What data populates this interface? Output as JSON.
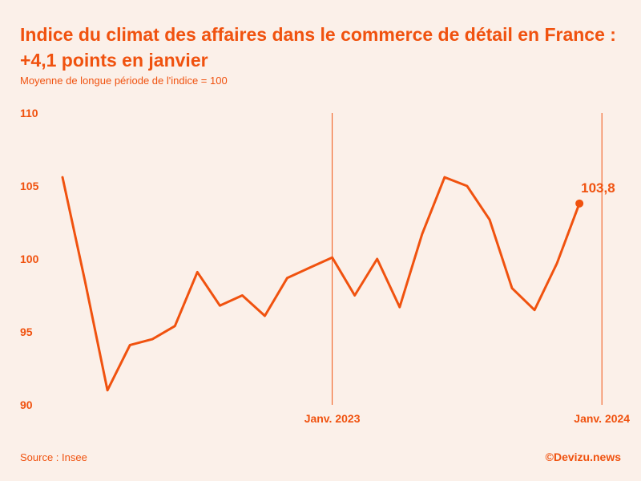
{
  "header": {
    "title": "Indice du climat des affaires dans le commerce de détail en France : +4,1 points en janvier",
    "subtitle": "Moyenne de longue période de l'indice = 100"
  },
  "footer": {
    "source": "Source : Insee",
    "brand": "©Devizu.news"
  },
  "colors": {
    "accent": "#f0520f",
    "background": "#fbf0e9"
  },
  "chart_data": {
    "type": "line",
    "title": "Indice du climat des affaires dans le commerce de détail en France : +4,1 points en janvier",
    "subtitle": "Moyenne de longue période de l'indice = 100",
    "xlabel": "",
    "ylabel": "",
    "ylim": [
      90,
      110
    ],
    "yticks": [
      110,
      105,
      100,
      95,
      90
    ],
    "grid": false,
    "x": [
      "2022-01",
      "2022-02",
      "2022-03",
      "2022-04",
      "2022-05",
      "2022-06",
      "2022-07",
      "2022-08",
      "2022-09",
      "2022-10",
      "2022-11",
      "2022-12",
      "2023-01",
      "2023-02",
      "2023-03",
      "2023-04",
      "2023-05",
      "2023-06",
      "2023-07",
      "2023-08",
      "2023-09",
      "2023-10",
      "2023-11",
      "2023-12",
      "2024-01"
    ],
    "series": [
      {
        "name": "",
        "values": [
          105.6,
          98.5,
          91.0,
          94.1,
          94.5,
          95.4,
          99.1,
          96.8,
          97.5,
          96.1,
          98.7,
          99.4,
          100.1,
          97.5,
          100.0,
          96.7,
          101.7,
          105.6,
          105.0,
          102.7,
          98.0,
          96.5,
          99.7,
          103.8,
          null
        ]
      }
    ],
    "markers": [
      {
        "x": "2023-01",
        "label": "Janv. 2023"
      },
      {
        "x": "2024-01",
        "label": "Janv. 2024"
      }
    ],
    "last_point": {
      "x": "2023-12",
      "value": 103.8,
      "label": "103,8"
    }
  }
}
